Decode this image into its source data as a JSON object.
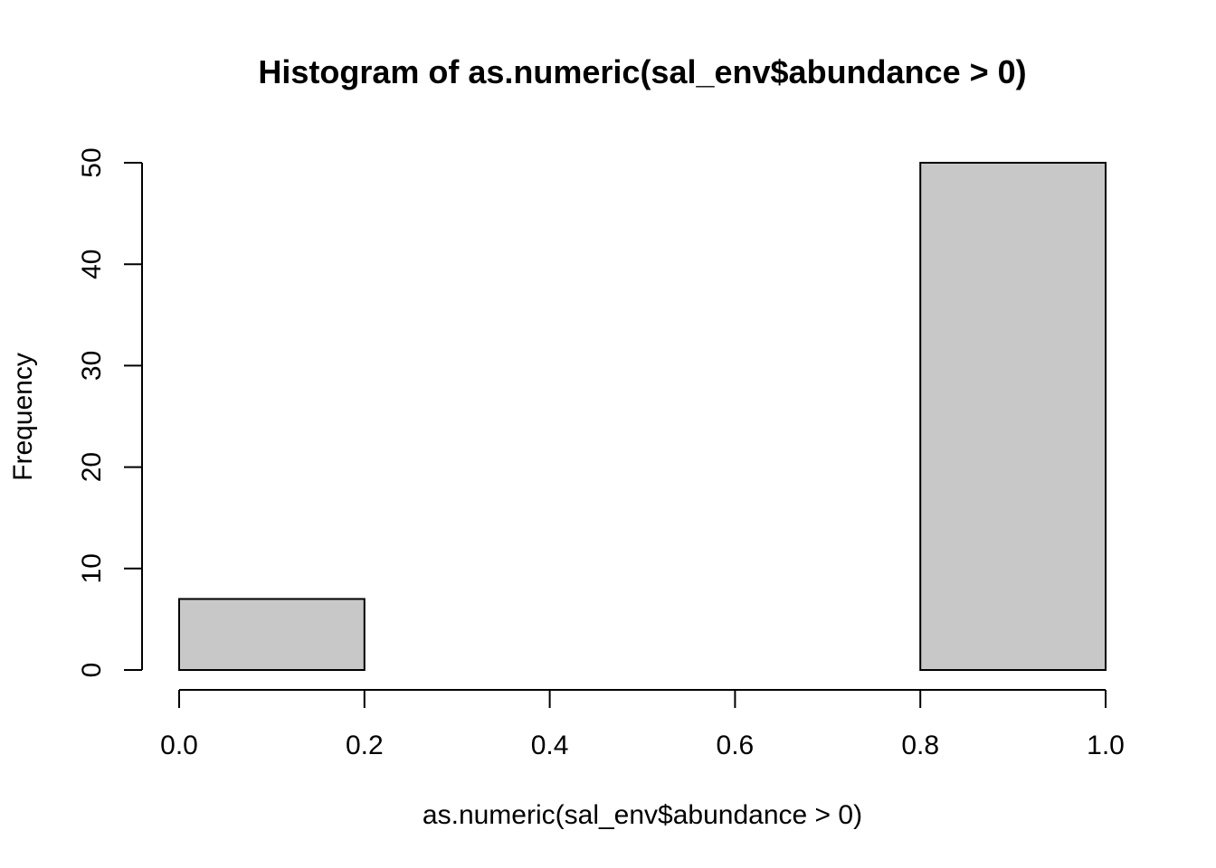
{
  "chart_data": {
    "type": "bar",
    "title": "Histogram of as.numeric(sal_env$abundance > 0)",
    "xlabel": "as.numeric(sal_env$abundance > 0)",
    "ylabel": "Frequency",
    "bins": [
      {
        "start": 0.0,
        "end": 0.2,
        "count": 7
      },
      {
        "start": 0.2,
        "end": 0.4,
        "count": 0
      },
      {
        "start": 0.4,
        "end": 0.6,
        "count": 0
      },
      {
        "start": 0.6,
        "end": 0.8,
        "count": 0
      },
      {
        "start": 0.8,
        "end": 1.0,
        "count": 50
      }
    ],
    "xlim": [
      0.0,
      1.0
    ],
    "ylim": [
      0,
      50
    ],
    "x_ticks": [
      "0.0",
      "0.2",
      "0.4",
      "0.6",
      "0.8",
      "1.0"
    ],
    "y_ticks": [
      "0",
      "10",
      "20",
      "30",
      "40",
      "50"
    ],
    "bar_color": "#c8c8c8",
    "grid": false,
    "legend": "none"
  }
}
